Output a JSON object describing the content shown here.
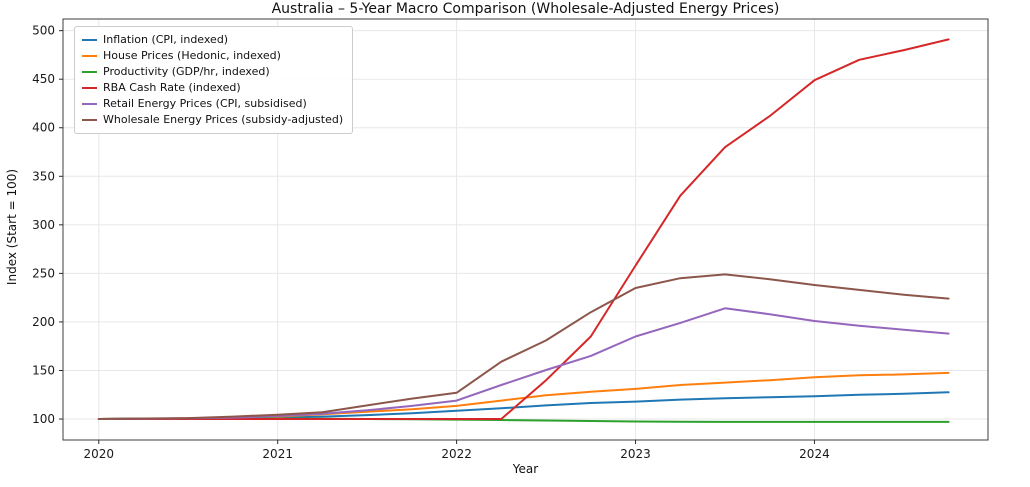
{
  "chart_data": {
    "type": "line",
    "title": "Australia – 5-Year Macro Comparison (Wholesale-Adjusted Energy Prices)",
    "xlabel": "Year",
    "ylabel": "Index (Start = 100)",
    "xlim": [
      2019.8,
      2024.97
    ],
    "ylim": [
      78.4,
      512
    ],
    "x_ticks": [
      2020,
      2021,
      2022,
      2023,
      2024
    ],
    "y_ticks": [
      100,
      150,
      200,
      250,
      300,
      350,
      400,
      450,
      500
    ],
    "grid": true,
    "grid_color": "#e7e7e7",
    "legend_position": "upper left",
    "x": [
      2020.0,
      2020.25,
      2020.5,
      2020.75,
      2021.0,
      2021.25,
      2021.5,
      2021.75,
      2022.0,
      2022.25,
      2022.5,
      2022.75,
      2023.0,
      2023.25,
      2023.5,
      2023.75,
      2024.0,
      2024.25,
      2024.5,
      2024.75
    ],
    "series": [
      {
        "name": "Inflation (CPI, indexed)",
        "color": "#1f77b4",
        "values": [
          100,
          100.2,
          100.5,
          101,
          101.5,
          102.5,
          104,
          106,
          108.5,
          111,
          114,
          116.5,
          118,
          120,
          121.5,
          122.5,
          123.5,
          125,
          126,
          127.5
        ]
      },
      {
        "name": "House Prices (Hedonic, indexed)",
        "color": "#ff7f0e",
        "values": [
          100,
          100.3,
          100.8,
          101.5,
          102.5,
          105,
          107.5,
          110,
          113.5,
          119,
          124.5,
          128,
          131,
          135,
          137.5,
          140,
          143,
          145,
          146,
          147.5
        ]
      },
      {
        "name": "Productivity (GDP/hr, indexed)",
        "color": "#2ca02c",
        "values": [
          100,
          100.3,
          100.5,
          100.5,
          100.4,
          100.2,
          100,
          99.7,
          99.4,
          99,
          98.5,
          98,
          97.5,
          97.2,
          97,
          97,
          97,
          97,
          97,
          97
        ]
      },
      {
        "name": "RBA Cash Rate (indexed)",
        "color": "#d62728",
        "values": [
          100,
          100,
          100,
          100,
          100,
          100,
          100,
          100,
          100,
          100,
          140,
          185,
          258,
          330,
          380,
          412,
          449,
          470,
          480,
          491
        ]
      },
      {
        "name": "Retail Energy Prices (CPI, subsidised)",
        "color": "#9467bd",
        "values": [
          100,
          100.3,
          100.8,
          101.5,
          103,
          105.5,
          109,
          113.5,
          119,
          135,
          150.5,
          165,
          185,
          199,
          214,
          208,
          201,
          196,
          192,
          188
        ]
      },
      {
        "name": "Wholesale Energy Prices (subsidy-adjusted)",
        "color": "#8c564b",
        "values": [
          100,
          100.5,
          101,
          102.5,
          104.5,
          107,
          114,
          121,
          127,
          159,
          181,
          210,
          235,
          245,
          249,
          244,
          238,
          233,
          228,
          224
        ]
      }
    ]
  }
}
